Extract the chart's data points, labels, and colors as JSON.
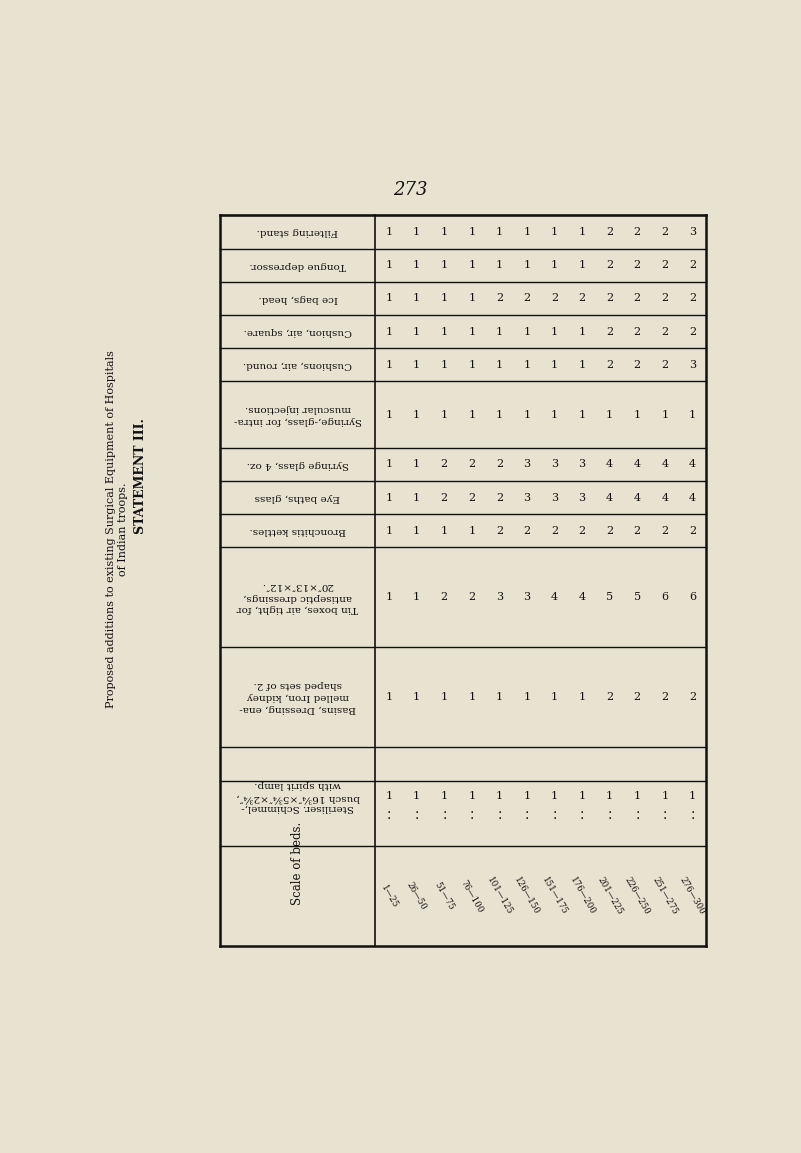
{
  "page_number": "273",
  "background_color": "#e8e2d0",
  "border_color": "#111111",
  "text_color": "#111111",
  "scale_label": "Scale of beds.",
  "bed_scales": [
    "1—25",
    "26—50",
    "51—75",
    "76—100",
    "101—125",
    "126—150",
    "151—175",
    "176—200",
    "201—225",
    "226—250",
    "251—275",
    "276—300"
  ],
  "left_text_top": "Proposed additions to existing Surgical Equipment of Hospitals",
  "left_text_bottom": "of Indian troops.",
  "statement": "STATEMENT III.",
  "rows": [
    {
      "label": "Filtering stand.",
      "values": [
        1,
        1,
        1,
        1,
        1,
        1,
        1,
        1,
        2,
        2,
        2,
        3
      ],
      "lines": 1
    },
    {
      "label": "Tongue depressor.",
      "values": [
        1,
        1,
        1,
        1,
        1,
        1,
        1,
        1,
        2,
        2,
        2,
        2
      ],
      "lines": 1
    },
    {
      "label": "Ice bags, head.",
      "values": [
        1,
        1,
        1,
        1,
        2,
        2,
        2,
        2,
        2,
        2,
        2,
        2
      ],
      "lines": 1
    },
    {
      "label": "Cushion, air, square.",
      "values": [
        1,
        1,
        1,
        1,
        1,
        1,
        1,
        1,
        2,
        2,
        2,
        2
      ],
      "lines": 1
    },
    {
      "label": "Cushions, air, round.",
      "values": [
        1,
        1,
        1,
        1,
        1,
        1,
        1,
        1,
        2,
        2,
        2,
        3
      ],
      "lines": 1
    },
    {
      "label": "Syringe,-glass, for intra-\nmuscular injections.",
      "values": [
        1,
        1,
        1,
        1,
        1,
        1,
        1,
        1,
        1,
        1,
        1,
        1
      ],
      "lines": 2
    },
    {
      "label": "Syringe glass, 4 oz.",
      "values": [
        1,
        1,
        2,
        2,
        2,
        3,
        3,
        3,
        4,
        4,
        4,
        4
      ],
      "lines": 1
    },
    {
      "label": "Eye baths, glass",
      "values": [
        1,
        1,
        2,
        2,
        2,
        3,
        3,
        3,
        4,
        4,
        4,
        4
      ],
      "lines": 1
    },
    {
      "label": "Bronchitis kettles.",
      "values": [
        1,
        1,
        1,
        1,
        2,
        2,
        2,
        2,
        2,
        2,
        2,
        2
      ],
      "lines": 1
    },
    {
      "label": "Tin boxes, air tight, for\nantiseptic dressings,\n20″×13″×12″.",
      "values": [
        1,
        1,
        2,
        2,
        3,
        3,
        4,
        4,
        5,
        5,
        6,
        6
      ],
      "lines": 3
    },
    {
      "label": "Basins, Dressing, ena-\nmelled Iron, kidney\nshaped sets of 2.",
      "values": [
        1,
        1,
        1,
        1,
        1,
        1,
        1,
        1,
        2,
        2,
        2,
        2
      ],
      "lines": 3
    },
    {
      "label": "Steriliser. Schimmel,-\nbusch 16¾″×5¾″×2¾″,\nwith spirit lamp.",
      "values": [
        1,
        1,
        1,
        1,
        1,
        1,
        1,
        1,
        1,
        1,
        1,
        1
      ],
      "lines": 3
    }
  ]
}
